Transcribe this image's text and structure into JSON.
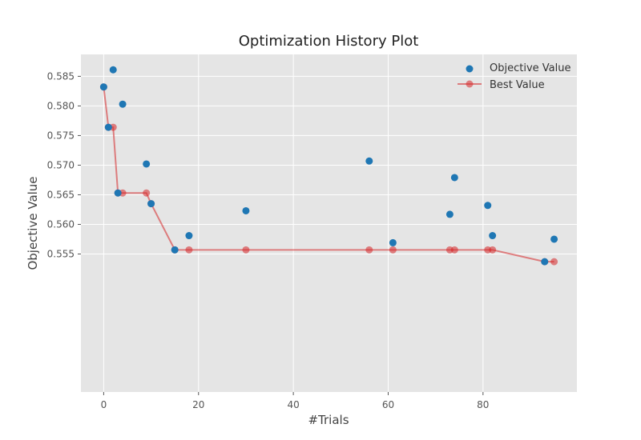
{
  "chart_data": {
    "type": "scatter",
    "title": "Optimization History Plot",
    "xlabel": "#Trials",
    "ylabel": "Objective Value",
    "xlim": [
      -4.8,
      99.8
    ],
    "ylim": [
      0.5317,
      0.5887
    ],
    "xticks": [
      0,
      20,
      40,
      60,
      80
    ],
    "yticks": [
      0.555,
      0.56,
      0.565,
      0.57,
      0.575,
      0.58,
      0.585
    ],
    "ytick_labels": [
      "0.555",
      "0.560",
      "0.565",
      "0.570",
      "0.575",
      "0.580",
      "0.585"
    ],
    "grid": true,
    "legend_position": "top-right",
    "series": [
      {
        "name": "Objective Value",
        "kind": "scatter",
        "color": "#1f77b4",
        "points": [
          [
            0,
            0.5832
          ],
          [
            1,
            0.5764
          ],
          [
            2,
            0.5861
          ],
          [
            3,
            0.5653
          ],
          [
            4,
            0.5803
          ],
          [
            9,
            0.5702
          ],
          [
            10,
            0.5635
          ],
          [
            15,
            0.5557
          ],
          [
            18,
            0.5581
          ],
          [
            30,
            0.5623
          ],
          [
            56,
            0.5707
          ],
          [
            61,
            0.5569
          ],
          [
            73,
            0.5617
          ],
          [
            74,
            0.5679
          ],
          [
            81,
            0.5632
          ],
          [
            82,
            0.5581
          ],
          [
            93,
            0.5537
          ],
          [
            95,
            0.5575
          ]
        ]
      },
      {
        "name": "Best Value",
        "kind": "line",
        "color": "#d62728",
        "points": [
          [
            0,
            0.5832
          ],
          [
            1,
            0.5764
          ],
          [
            2,
            0.5764
          ],
          [
            3,
            0.5653
          ],
          [
            4,
            0.5653
          ],
          [
            9,
            0.5653
          ],
          [
            10,
            0.5635
          ],
          [
            15,
            0.5557
          ],
          [
            18,
            0.5557
          ],
          [
            30,
            0.5557
          ],
          [
            56,
            0.5557
          ],
          [
            61,
            0.5557
          ],
          [
            73,
            0.5557
          ],
          [
            74,
            0.5557
          ],
          [
            81,
            0.5557
          ],
          [
            82,
            0.5557
          ],
          [
            93,
            0.5537
          ],
          [
            95,
            0.5537
          ]
        ]
      }
    ]
  }
}
